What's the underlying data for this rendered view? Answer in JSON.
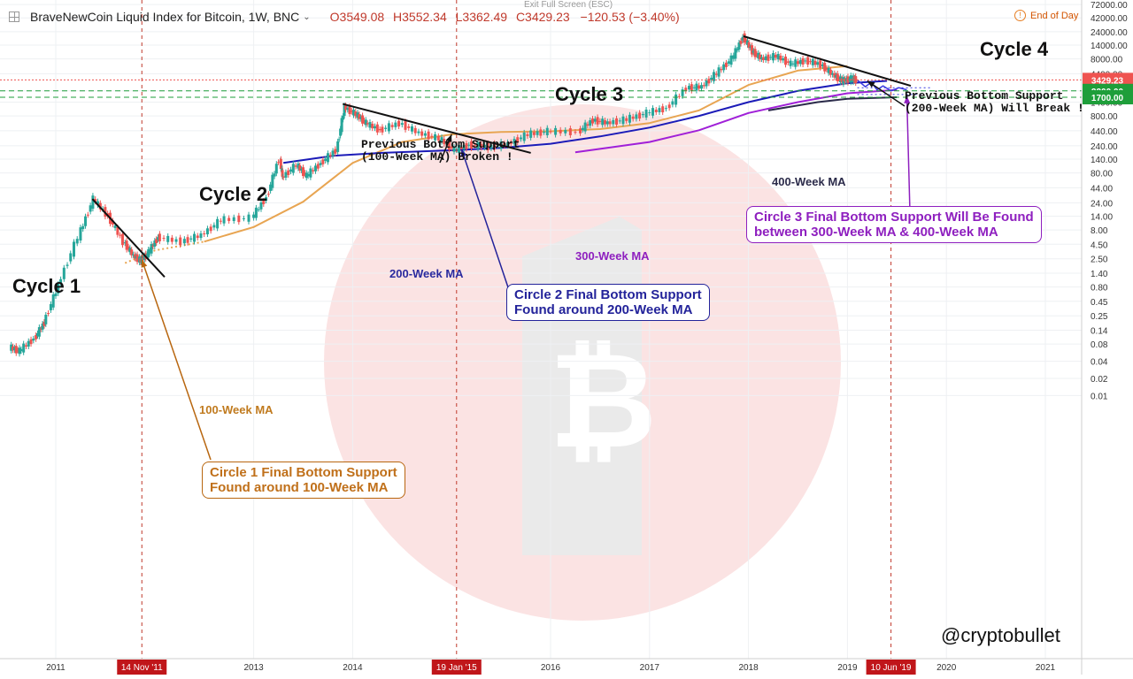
{
  "header": {
    "title": "BraveNewCoin Liquid Index for Bitcoin, 1W, BNC",
    "open": "O3549.08",
    "high": "H3552.34",
    "low": "L3362.49",
    "close": "C3429.23",
    "change": "−120.53 (−3.40%)",
    "exit_fullscreen": "Exit Full Screen (ESC)",
    "end_of_day": "End of Day"
  },
  "watermark": "@cryptobullet",
  "chart_data": {
    "type": "line",
    "title": "BraveNewCoin Liquid Index for Bitcoin, 1W, BNC",
    "y_scale": "log",
    "y_ticks": [
      "72000.00",
      "42000.00",
      "24000.00",
      "14000.00",
      "8000.00",
      "4400.00",
      "2200.00",
      "1400.00",
      "800.00",
      "440.00",
      "240.00",
      "140.00",
      "80.00",
      "44.00",
      "24.00",
      "14.00",
      "8.00",
      "4.50",
      "2.50",
      "1.40",
      "0.80",
      "0.45",
      "0.25",
      "0.14",
      "0.08",
      "0.04",
      "0.02",
      "0.01"
    ],
    "x_ticks": [
      "2011",
      "2013",
      "2014",
      "2016",
      "2017",
      "2018",
      "2019",
      "2020",
      "2021"
    ],
    "x_highlights": [
      "14 Nov '11",
      "19 Jan '15",
      "10 Jun '19"
    ],
    "price_labels": [
      {
        "label": "3429.23",
        "value": 3429.23,
        "color": "#ef5350"
      },
      {
        "label": "2200.00",
        "value": 2200,
        "color": "#1e9e3a"
      },
      {
        "label": "1700.00",
        "value": 1700,
        "color": "#1e9e3a"
      }
    ],
    "annotations": {
      "cycle1": "Cycle 1",
      "cycle2": "Cycle 2",
      "cycle3": "Cycle 3",
      "cycle4": "Cycle 4",
      "ma100": "100-Week MA",
      "ma200": "200-Week MA",
      "ma300": "300-Week MA",
      "ma400": "400-Week MA",
      "note1_line1": "Previous Bottom Support",
      "note1_line2": "(100-Week MA) Broken !",
      "note2_line1": "Previous Bottom Support",
      "note2_line2": "(200-Week MA) Will Break !",
      "box1_line1": "Circle 1 Final Bottom Support",
      "box1_line2": "Found around 100-Week MA",
      "box2_line1": "Circle 2 Final Bottom Support",
      "box2_line2": "Found around 200-Week MA",
      "box3_line1": "Circle 3 Final Bottom Support Will Be Found",
      "box3_line2": "between 300-Week MA & 400-Week MA"
    },
    "price_points": [
      [
        2010.55,
        0.07
      ],
      [
        2010.65,
        0.06
      ],
      [
        2010.8,
        0.1
      ],
      [
        2010.9,
        0.19
      ],
      [
        2011.05,
        0.85
      ],
      [
        2011.25,
        6
      ],
      [
        2011.4,
        28
      ],
      [
        2011.55,
        14
      ],
      [
        2011.7,
        5
      ],
      [
        2011.8,
        2.8
      ],
      [
        2011.87,
        2.3
      ],
      [
        2011.95,
        3.2
      ],
      [
        2012.05,
        6
      ],
      [
        2012.3,
        5
      ],
      [
        2012.5,
        6.5
      ],
      [
        2012.7,
        12
      ],
      [
        2013.0,
        13
      ],
      [
        2013.15,
        30
      ],
      [
        2013.27,
        140
      ],
      [
        2013.3,
        65
      ],
      [
        2013.45,
        110
      ],
      [
        2013.55,
        70
      ],
      [
        2013.7,
        120
      ],
      [
        2013.85,
        200
      ],
      [
        2013.93,
        1150
      ],
      [
        2014.05,
        850
      ],
      [
        2014.15,
        600
      ],
      [
        2014.3,
        450
      ],
      [
        2014.5,
        600
      ],
      [
        2014.7,
        400
      ],
      [
        2014.9,
        320
      ],
      [
        2015.05,
        200
      ],
      [
        2015.2,
        250
      ],
      [
        2015.4,
        230
      ],
      [
        2015.6,
        260
      ],
      [
        2015.8,
        380
      ],
      [
        2016.0,
        430
      ],
      [
        2016.3,
        420
      ],
      [
        2016.45,
        680
      ],
      [
        2016.6,
        600
      ],
      [
        2016.8,
        700
      ],
      [
        2017.0,
        900
      ],
      [
        2017.2,
        1100
      ],
      [
        2017.4,
        2500
      ],
      [
        2017.55,
        2600
      ],
      [
        2017.7,
        4500
      ],
      [
        2017.85,
        8000
      ],
      [
        2017.96,
        19500
      ],
      [
        2018.05,
        11000
      ],
      [
        2018.15,
        8000
      ],
      [
        2018.3,
        9000
      ],
      [
        2018.45,
        6500
      ],
      [
        2018.6,
        7500
      ],
      [
        2018.75,
        6400
      ],
      [
        2018.87,
        4200
      ],
      [
        2018.96,
        3300
      ],
      [
        2019.05,
        3600
      ],
      [
        2019.1,
        3429.23
      ]
    ],
    "ma100_points": [
      [
        2011.7,
        2.1
      ],
      [
        2012.0,
        3.5
      ],
      [
        2012.5,
        5
      ],
      [
        2013.0,
        9
      ],
      [
        2013.5,
        25
      ],
      [
        2014.0,
        120
      ],
      [
        2014.5,
        280
      ],
      [
        2015.0,
        380
      ],
      [
        2015.5,
        420
      ],
      [
        2016.0,
        430
      ],
      [
        2016.5,
        470
      ],
      [
        2017.0,
        600
      ],
      [
        2017.5,
        1000
      ],
      [
        2018.0,
        2800
      ],
      [
        2018.5,
        5000
      ],
      [
        2019.0,
        6000
      ]
    ],
    "ma200_points": [
      [
        2013.3,
        120
      ],
      [
        2013.8,
        160
      ],
      [
        2014.3,
        180
      ],
      [
        2015.0,
        200
      ],
      [
        2015.5,
        220
      ],
      [
        2016.0,
        260
      ],
      [
        2016.5,
        350
      ],
      [
        2017.0,
        500
      ],
      [
        2017.5,
        800
      ],
      [
        2018.0,
        1400
      ],
      [
        2018.5,
        2200
      ],
      [
        2019.0,
        3000
      ],
      [
        2019.4,
        3300
      ]
    ],
    "ma300_points": [
      [
        2016.25,
        185
      ],
      [
        2017.0,
        280
      ],
      [
        2017.5,
        450
      ],
      [
        2018.0,
        900
      ],
      [
        2018.5,
        1400
      ],
      [
        2019.0,
        2000
      ],
      [
        2019.5,
        2300
      ]
    ],
    "ma400_points": [
      [
        2018.2,
        1000
      ],
      [
        2018.7,
        1400
      ],
      [
        2019.0,
        1600
      ],
      [
        2019.5,
        1700
      ]
    ]
  }
}
